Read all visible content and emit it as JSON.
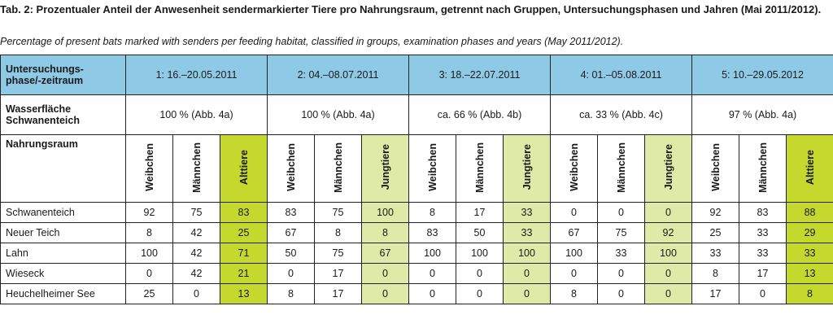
{
  "title": "Tab. 2: Prozentualer Anteil der Anwesenheit sendermarkierter Tiere pro Nahrungsraum, getrennt nach Gruppen, Untersuchungsphasen und Jahren (Mai 2011/2012).",
  "subtitle": "Percentage of present bats marked with senders per feeding habitat, classified in groups, examination phases and years (May 2011/2012).",
  "colors": {
    "header_blue": "#8ecae6",
    "alttiere_green": "#c4d82e",
    "jungtiere_green": "#dfe9a8"
  },
  "table": {
    "corner_label_1": "Untersuchungs-",
    "corner_label_2": "phase/-zeitraum",
    "wasser_label_1": "Wasserfläche",
    "wasser_label_2": "Schwanenteich",
    "nahrung_label": "Nahrungsraum",
    "phases": [
      {
        "label": "1: 16.–20.05.2011",
        "wasser": "100 % (Abb. 4a)",
        "groups": [
          "Weibchen",
          "Männchen",
          "Alttiere"
        ]
      },
      {
        "label": "2: 04.–08.07.2011",
        "wasser": "100 % (Abb. 4a)",
        "groups": [
          "Weibchen",
          "Männchen",
          "Jungtiere"
        ]
      },
      {
        "label": "3: 18.–22.07.2011",
        "wasser": "ca. 66 % (Abb. 4b)",
        "groups": [
          "Weibchen",
          "Männchen",
          "Jungtiere"
        ]
      },
      {
        "label": "4: 01.–05.08.2011",
        "wasser": "ca. 33 % (Abb. 4c)",
        "groups": [
          "Weibchen",
          "Männchen",
          "Jungtiere"
        ]
      },
      {
        "label": "5: 10.–29.05.2012",
        "wasser": "97 % (Abb. 4a)",
        "groups": [
          "Weibchen",
          "Männchen",
          "Alttiere"
        ]
      }
    ],
    "rows": [
      {
        "name": "Schwanenteich",
        "values": [
          "92",
          "75",
          "83",
          "83",
          "75",
          "100",
          "8",
          "17",
          "33",
          "0",
          "0",
          "0",
          "92",
          "83",
          "88"
        ]
      },
      {
        "name": "Neuer Teich",
        "values": [
          "8",
          "42",
          "25",
          "67",
          "8",
          "8",
          "83",
          "50",
          "33",
          "67",
          "75",
          "92",
          "25",
          "33",
          "29"
        ]
      },
      {
        "name": "Lahn",
        "values": [
          "100",
          "42",
          "71",
          "50",
          "75",
          "67",
          "100",
          "100",
          "100",
          "100",
          "33",
          "100",
          "33",
          "33",
          "33"
        ]
      },
      {
        "name": "Wieseck",
        "values": [
          "0",
          "42",
          "21",
          "0",
          "17",
          "0",
          "0",
          "0",
          "0",
          "0",
          "0",
          "0",
          "8",
          "17",
          "13"
        ]
      },
      {
        "name": "Heuchelheimer See",
        "values": [
          "25",
          "0",
          "13",
          "8",
          "17",
          "0",
          "0",
          "0",
          "0",
          "8",
          "0",
          "0",
          "17",
          "0",
          "8"
        ]
      }
    ]
  }
}
